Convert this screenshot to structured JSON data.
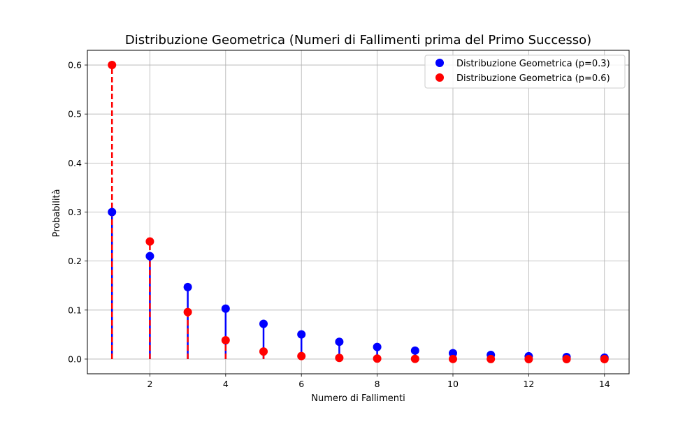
{
  "chart_data": {
    "type": "scatter",
    "title": "Distribuzione Geometrica (Numeri di Fallimenti prima del Primo Successo)",
    "xlabel": "Numero di Fallimenti",
    "ylabel": "Probabilità",
    "xlim": [
      0.35,
      14.65
    ],
    "ylim": [
      -0.03,
      0.63
    ],
    "xticks": [
      2,
      4,
      6,
      8,
      10,
      12,
      14
    ],
    "yticks": [
      0.0,
      0.1,
      0.2,
      0.3,
      0.4,
      0.5,
      0.6
    ],
    "grid": true,
    "legend_position": "top-right",
    "x": [
      1,
      2,
      3,
      4,
      5,
      6,
      7,
      8,
      9,
      10,
      11,
      12,
      13,
      14
    ],
    "series": [
      {
        "name": "Distribuzione Geometrica (p=0.3)",
        "color": "#0000ff",
        "stem_style": "solid",
        "values": [
          0.3,
          0.21,
          0.147,
          0.1029,
          0.072,
          0.0504,
          0.0353,
          0.0247,
          0.0173,
          0.0121,
          0.0085,
          0.0059,
          0.0042,
          0.0029
        ]
      },
      {
        "name": "Distribuzione Geometrica (p=0.6)",
        "color": "#ff0000",
        "stem_style": "dashed",
        "values": [
          0.6,
          0.24,
          0.096,
          0.0384,
          0.0154,
          0.0061,
          0.0025,
          0.001,
          0.0004,
          0.0002,
          0.0001,
          0.0,
          0.0,
          0.0
        ]
      }
    ]
  }
}
